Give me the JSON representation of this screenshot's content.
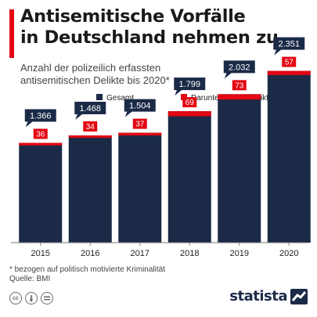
{
  "title_lines": [
    "Antisemitische Vorfälle",
    "in Deutschland nehmen zu"
  ],
  "subtitle_lines": [
    "Anzahl der polizeilich erfassten",
    "antisemitischen Delikte bis 2020*"
  ],
  "footnote": "* bezogen auf politisch motivierte Kriminalität",
  "source": "Quelle: BMI",
  "brand": "statista",
  "license_icons": [
    "creative-commons-icon",
    "attribution-icon",
    "no-derivatives-icon"
  ],
  "colors": {
    "accent": "#e30613",
    "bar": "#1b2a47"
  },
  "chart_data": {
    "type": "bar",
    "categories": [
      "2015",
      "2016",
      "2017",
      "2018",
      "2019",
      "2020"
    ],
    "series": [
      {
        "name": "Gesamt",
        "color": "#1b2a47",
        "values": [
          1366,
          1468,
          1504,
          1799,
          2032,
          2351
        ],
        "labels": [
          "1.366",
          "1.468",
          "1.504",
          "1.799",
          "2.032",
          "2.351"
        ]
      },
      {
        "name": "Darunter: Gewaltdelikte",
        "color": "#e30613",
        "values": [
          36,
          34,
          37,
          69,
          73,
          57
        ],
        "labels": [
          "36",
          "34",
          "37",
          "69",
          "73",
          "57"
        ]
      }
    ],
    "legend_position": "top-right",
    "ylim": [
      0,
      3000
    ],
    "grid": false
  }
}
